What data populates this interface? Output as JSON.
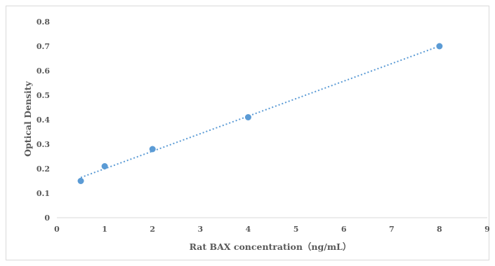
{
  "chart_data": {
    "type": "scatter",
    "title": "",
    "xlabel": "Rat BAX concentration（ng/mL）",
    "ylabel": "Optical Density",
    "xlim": [
      0,
      9
    ],
    "ylim": [
      0,
      0.8
    ],
    "x_ticks": [
      "0",
      "1",
      "2",
      "3",
      "4",
      "5",
      "6",
      "7",
      "8",
      "9"
    ],
    "y_ticks": [
      "0",
      "0.1",
      "0.2",
      "0.3",
      "0.4",
      "0.5",
      "0.6",
      "0.7",
      "0.8"
    ],
    "grid": false,
    "legend": "none",
    "trendline": {
      "style": "dotted",
      "type": "linear",
      "x_start": 0.5,
      "x_end": 8
    },
    "marker_color": "#5b9bd5",
    "series": [
      {
        "x": [
          0.5,
          1,
          2,
          4,
          8
        ],
        "y": [
          0.15,
          0.21,
          0.28,
          0.41,
          0.7
        ]
      }
    ]
  }
}
